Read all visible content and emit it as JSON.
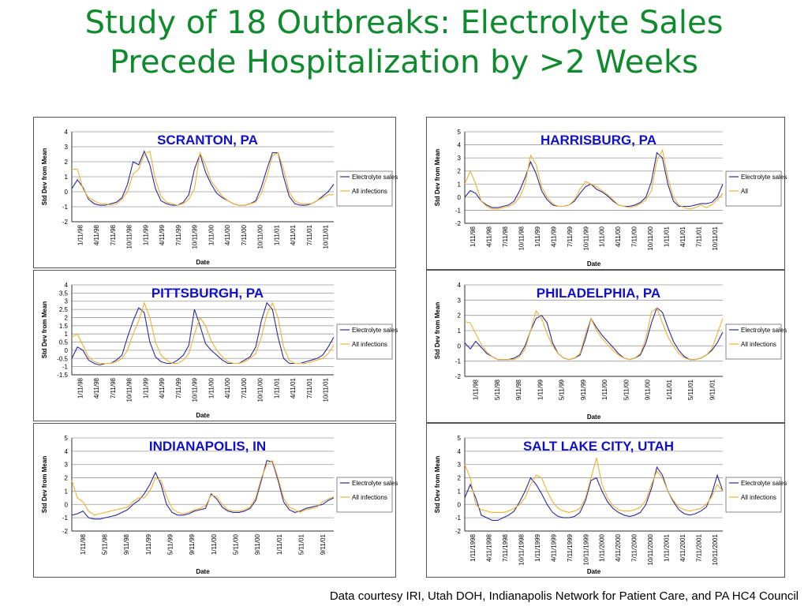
{
  "title": {
    "line1": "Study of 18 Outbreaks: Electrolyte Sales",
    "line2": "Precede Hospitalization by >2 Weeks"
  },
  "footer": "Data courtesy IRI, Utah DOH, Indianapolis Network for Patient Care, and PA HC4 Council",
  "colors": {
    "title": "#0f8a2f",
    "chart_title": "#1010c8",
    "electrolyte": "#2a2aa0",
    "infections": "#f0b030"
  },
  "chart_data": [
    {
      "type": "line",
      "title": "SCRANTON, PA",
      "ylabel": "Std Dev from Mean",
      "xlabel": "Date",
      "ylim": [
        -2,
        4
      ],
      "yticks": [
        "-2",
        "-1",
        "0",
        "1",
        "2",
        "3",
        "4"
      ],
      "xticks": [
        "1/11/98",
        "4/11/98",
        "7/11/98",
        "10/11/98",
        "1/11/99",
        "4/11/99",
        "7/11/99",
        "10/11/99",
        "1/11/00",
        "4/11/00",
        "7/11/00",
        "10/11/00",
        "1/11/01",
        "4/11/01",
        "7/11/01",
        "10/11/01"
      ],
      "legend": "right",
      "grid": true,
      "x": [
        0,
        1,
        2,
        3,
        4,
        5,
        6,
        7,
        8,
        9,
        10,
        11,
        12,
        13,
        14,
        15,
        16,
        17,
        18,
        19,
        20,
        21,
        22,
        23,
        24,
        25,
        26,
        27,
        28,
        29,
        30,
        31,
        32,
        33,
        34,
        35,
        36,
        37,
        38,
        39,
        40,
        41,
        42,
        43,
        44,
        45,
        46,
        47
      ],
      "series": [
        {
          "name": "Electrolyte sales",
          "values": [
            0.2,
            0.8,
            0.3,
            -0.5,
            -0.8,
            -0.9,
            -0.9,
            -0.8,
            -0.7,
            -0.4,
            0.5,
            2.0,
            1.8,
            2.7,
            1.8,
            0.2,
            -0.6,
            -0.8,
            -0.9,
            -0.9,
            -0.7,
            -0.2,
            1.5,
            2.5,
            1.3,
            0.5,
            -0.1,
            -0.4,
            -0.6,
            -0.8,
            -0.9,
            -0.9,
            -0.8,
            -0.6,
            0.3,
            1.5,
            2.6,
            2.6,
            1.0,
            -0.3,
            -0.8,
            -0.9,
            -0.9,
            -0.8,
            -0.6,
            -0.3,
            0.0,
            0.5
          ]
        },
        {
          "name": "All infections",
          "values": [
            1.5,
            1.5,
            0.2,
            -0.4,
            -0.6,
            -0.8,
            -0.8,
            -0.9,
            -0.8,
            -0.5,
            0.0,
            1.2,
            1.5,
            2.5,
            2.7,
            0.8,
            -0.3,
            -0.7,
            -0.8,
            -0.9,
            -0.8,
            -0.5,
            0.2,
            2.6,
            1.8,
            0.7,
            0.2,
            -0.3,
            -0.6,
            -0.8,
            -0.9,
            -0.9,
            -0.8,
            -0.7,
            -0.1,
            1.0,
            2.4,
            2.6,
            1.5,
            0.0,
            -0.6,
            -0.8,
            -0.8,
            -0.8,
            -0.6,
            -0.4,
            -0.2,
            -0.2
          ]
        }
      ]
    },
    {
      "type": "line",
      "title": "HARRISBURG, PA",
      "ylabel": "Std Dev from Mean",
      "xlabel": "Date",
      "ylim": [
        -2,
        5
      ],
      "yticks": [
        "-2",
        "-1",
        "0",
        "1",
        "2",
        "3",
        "4",
        "5"
      ],
      "xticks": [
        "1/11/98",
        "4/11/98",
        "7/11/98",
        "10/11/98",
        "1/11/99",
        "4/11/99",
        "7/11/99",
        "10/11/99",
        "1/11/00",
        "4/11/00",
        "7/11/00",
        "10/11/00",
        "1/11/01",
        "4/11/01",
        "7/11/01",
        "10/11/01"
      ],
      "legend": "right",
      "grid": true,
      "x": [
        0,
        1,
        2,
        3,
        4,
        5,
        6,
        7,
        8,
        9,
        10,
        11,
        12,
        13,
        14,
        15,
        16,
        17,
        18,
        19,
        20,
        21,
        22,
        23,
        24,
        25,
        26,
        27,
        28,
        29,
        30,
        31,
        32,
        33,
        34,
        35,
        36,
        37,
        38,
        39,
        40,
        41,
        42,
        43,
        44,
        45,
        46,
        47
      ],
      "series": [
        {
          "name": "Electrolyte sales",
          "values": [
            0.0,
            0.5,
            0.3,
            -0.3,
            -0.6,
            -0.8,
            -0.8,
            -0.7,
            -0.6,
            -0.3,
            0.5,
            1.5,
            2.7,
            1.8,
            0.5,
            -0.2,
            -0.6,
            -0.7,
            -0.7,
            -0.6,
            -0.3,
            0.3,
            0.8,
            1.0,
            0.6,
            0.4,
            0.1,
            -0.3,
            -0.6,
            -0.7,
            -0.7,
            -0.6,
            -0.4,
            0.0,
            1.2,
            3.4,
            3.0,
            1.0,
            -0.3,
            -0.7,
            -0.7,
            -0.7,
            -0.6,
            -0.5,
            -0.5,
            -0.4,
            0.0,
            1.0
          ]
        },
        {
          "name": "All",
          "values": [
            1.0,
            2.0,
            1.0,
            -0.3,
            -0.7,
            -0.9,
            -0.9,
            -0.8,
            -0.7,
            -0.5,
            0.0,
            1.0,
            3.2,
            2.5,
            0.8,
            0.0,
            -0.5,
            -0.7,
            -0.7,
            -0.6,
            -0.2,
            0.6,
            1.2,
            1.0,
            0.8,
            0.5,
            0.2,
            -0.2,
            -0.6,
            -0.7,
            -0.8,
            -0.7,
            -0.5,
            -0.2,
            0.5,
            2.8,
            3.6,
            1.5,
            0.0,
            -0.6,
            -0.8,
            -0.9,
            -0.8,
            -0.6,
            -0.8,
            -0.6,
            -0.2,
            0.3
          ]
        }
      ]
    },
    {
      "type": "line",
      "title": "PITTSBURGH, PA",
      "ylabel": "Std Dev from Mean",
      "xlabel": "Date",
      "ylim": [
        -1.5,
        4
      ],
      "yticks": [
        "-1.5",
        "-1",
        "-0.5",
        "0",
        "0.5",
        "1",
        "1.5",
        "2",
        "2.5",
        "3",
        "3.5",
        "4"
      ],
      "xticks": [
        "1/11/98",
        "4/11/98",
        "7/11/98",
        "10/11/98",
        "1/11/99",
        "4/11/99",
        "7/11/99",
        "10/11/99",
        "1/11/00",
        "4/11/00",
        "7/11/00",
        "10/11/00",
        "1/11/01",
        "4/11/01",
        "7/11/01",
        "10/11/01"
      ],
      "legend": "right",
      "grid": true,
      "x": [
        0,
        1,
        2,
        3,
        4,
        5,
        6,
        7,
        8,
        9,
        10,
        11,
        12,
        13,
        14,
        15,
        16,
        17,
        18,
        19,
        20,
        21,
        22,
        23,
        24,
        25,
        26,
        27,
        28,
        29,
        30,
        31,
        32,
        33,
        34,
        35,
        36,
        37,
        38,
        39,
        40,
        41,
        42,
        43,
        44,
        45,
        46,
        47
      ],
      "series": [
        {
          "name": "Electrolyte sales",
          "values": [
            -0.5,
            0.2,
            0.0,
            -0.6,
            -0.8,
            -0.9,
            -0.8,
            -0.8,
            -0.6,
            -0.3,
            0.8,
            1.8,
            2.6,
            2.3,
            0.5,
            -0.4,
            -0.7,
            -0.8,
            -0.8,
            -0.6,
            -0.3,
            0.3,
            2.5,
            1.5,
            0.4,
            0.0,
            -0.3,
            -0.6,
            -0.8,
            -0.8,
            -0.8,
            -0.6,
            -0.4,
            0.2,
            1.8,
            2.9,
            2.5,
            0.8,
            -0.5,
            -0.8,
            -0.8,
            -0.8,
            -0.7,
            -0.6,
            -0.5,
            -0.3,
            0.2,
            0.8
          ]
        },
        {
          "name": "All infections",
          "values": [
            0.8,
            1.0,
            0.3,
            -0.4,
            -0.7,
            -0.8,
            -0.8,
            -0.8,
            -0.7,
            -0.5,
            0.0,
            1.0,
            1.8,
            2.9,
            2.0,
            0.5,
            -0.3,
            -0.6,
            -0.8,
            -0.8,
            -0.6,
            -0.2,
            1.0,
            2.0,
            1.5,
            0.6,
            0.0,
            -0.4,
            -0.7,
            -0.8,
            -0.8,
            -0.7,
            -0.5,
            -0.2,
            0.8,
            2.2,
            2.9,
            2.0,
            0.2,
            -0.6,
            -0.8,
            -0.8,
            -0.8,
            -0.7,
            -0.6,
            -0.5,
            -0.2,
            0.3
          ]
        }
      ]
    },
    {
      "type": "line",
      "title": "PHILADELPHIA, PA",
      "ylabel": "Std Dev from Mean",
      "xlabel": "Date",
      "ylim": [
        -2,
        4
      ],
      "yticks": [
        "-2",
        "-1",
        "0",
        "1",
        "2",
        "3",
        "4"
      ],
      "xticks": [
        "1/11/98",
        "5/11/98",
        "9/11/98",
        "1/11/99",
        "5/11/99",
        "9/11/99",
        "1/11/00",
        "5/11/00",
        "9/11/00",
        "1/11/01",
        "5/11/01",
        "9/11/01"
      ],
      "legend": "right",
      "grid": true,
      "x": [
        0,
        1,
        2,
        3,
        4,
        5,
        6,
        7,
        8,
        9,
        10,
        11,
        12,
        13,
        14,
        15,
        16,
        17,
        18,
        19,
        20,
        21,
        22,
        23,
        24,
        25,
        26,
        27,
        28,
        29,
        30,
        31,
        32,
        33,
        34,
        35,
        36,
        37,
        38,
        39,
        40,
        41,
        42,
        43,
        44,
        45,
        46,
        47
      ],
      "series": [
        {
          "name": "Electrolyte sales",
          "values": [
            0.2,
            -0.2,
            0.3,
            -0.1,
            -0.5,
            -0.7,
            -0.9,
            -0.9,
            -0.9,
            -0.8,
            -0.6,
            0.0,
            1.0,
            1.8,
            2.0,
            1.5,
            0.2,
            -0.5,
            -0.8,
            -0.9,
            -0.8,
            -0.6,
            0.5,
            1.8,
            1.2,
            0.7,
            0.3,
            -0.1,
            -0.5,
            -0.8,
            -0.9,
            -0.8,
            -0.6,
            0.2,
            1.5,
            2.5,
            2.2,
            1.2,
            0.3,
            -0.3,
            -0.7,
            -0.9,
            -0.9,
            -0.8,
            -0.6,
            -0.3,
            0.2,
            0.9
          ]
        },
        {
          "name": "All infections",
          "values": [
            1.6,
            1.5,
            0.8,
            0.1,
            -0.4,
            -0.7,
            -0.9,
            -0.9,
            -0.9,
            -0.9,
            -0.7,
            -0.2,
            1.0,
            2.3,
            1.8,
            0.8,
            0.0,
            -0.5,
            -0.8,
            -0.9,
            -0.8,
            -0.5,
            0.8,
            1.8,
            1.0,
            0.5,
            0.1,
            -0.3,
            -0.6,
            -0.8,
            -0.9,
            -0.8,
            -0.5,
            0.5,
            2.2,
            2.5,
            1.5,
            0.6,
            0.0,
            -0.5,
            -0.8,
            -0.9,
            -0.9,
            -0.8,
            -0.6,
            -0.2,
            0.8,
            1.8
          ]
        }
      ]
    },
    {
      "type": "line",
      "title": "INDIANAPOLIS, IN",
      "ylabel": "Std Dev from Mean",
      "xlabel": "Date",
      "ylim": [
        -2,
        5
      ],
      "yticks": [
        "-2",
        "-1",
        "0",
        "1",
        "2",
        "3",
        "4",
        "5"
      ],
      "xticks": [
        "1/11/98",
        "5/11/98",
        "9/11/98",
        "1/11/99",
        "5/11/99",
        "9/11/99",
        "1/11/00",
        "5/11/00",
        "9/11/00",
        "1/11/01",
        "5/11/01",
        "9/11/01"
      ],
      "legend": "right",
      "grid": true,
      "x": [
        0,
        1,
        2,
        3,
        4,
        5,
        6,
        7,
        8,
        9,
        10,
        11,
        12,
        13,
        14,
        15,
        16,
        17,
        18,
        19,
        20,
        21,
        22,
        23,
        24,
        25,
        26,
        27,
        28,
        29,
        30,
        31,
        32,
        33,
        34,
        35,
        36,
        37,
        38,
        39,
        40,
        41,
        42,
        43,
        44,
        45,
        46,
        47
      ],
      "series": [
        {
          "name": "Electrolyte sales",
          "values": [
            -0.8,
            -0.7,
            -0.5,
            -1.0,
            -1.1,
            -1.1,
            -1.0,
            -0.9,
            -0.8,
            -0.6,
            -0.4,
            0.0,
            0.3,
            0.8,
            1.5,
            2.4,
            1.5,
            0.0,
            -0.6,
            -0.8,
            -0.8,
            -0.7,
            -0.5,
            -0.4,
            -0.3,
            0.8,
            0.4,
            -0.2,
            -0.5,
            -0.6,
            -0.6,
            -0.5,
            -0.3,
            0.3,
            1.8,
            3.3,
            3.2,
            1.8,
            0.2,
            -0.4,
            -0.6,
            -0.5,
            -0.3,
            -0.2,
            -0.1,
            0.0,
            0.3,
            0.5
          ]
        },
        {
          "name": "All infections",
          "values": [
            1.8,
            0.5,
            0.2,
            -0.5,
            -0.8,
            -0.7,
            -0.6,
            -0.5,
            -0.4,
            -0.3,
            -0.2,
            0.2,
            0.5,
            0.5,
            1.0,
            2.0,
            1.8,
            0.6,
            -0.3,
            -0.6,
            -0.7,
            -0.6,
            -0.4,
            -0.3,
            -0.1,
            0.7,
            0.6,
            0.0,
            -0.4,
            -0.5,
            -0.5,
            -0.4,
            -0.2,
            0.5,
            2.0,
            3.0,
            3.3,
            2.0,
            0.5,
            -0.2,
            -0.4,
            -0.6,
            -0.4,
            -0.3,
            -0.2,
            0.2,
            0.4,
            0.6
          ]
        }
      ]
    },
    {
      "type": "line",
      "title": "SALT LAKE CITY, UTAH",
      "ylabel": "Std Dev from Mean",
      "xlabel": "Date",
      "ylim": [
        -2,
        5
      ],
      "yticks": [
        "-2",
        "-1",
        "0",
        "1",
        "2",
        "3",
        "4",
        "5"
      ],
      "xticks": [
        "1/11/1998",
        "4/11/1998",
        "7/11/1998",
        "10/11/1998",
        "1/11/1999",
        "4/11/1999",
        "7/11/1999",
        "10/11/1999",
        "1/11/2000",
        "4/11/2000",
        "7/11/2000",
        "10/11/2000",
        "1/11/2001",
        "4/11/2001",
        "7/11/2001",
        "10/11/2001"
      ],
      "legend": "right",
      "grid": true,
      "x": [
        0,
        1,
        2,
        3,
        4,
        5,
        6,
        7,
        8,
        9,
        10,
        11,
        12,
        13,
        14,
        15,
        16,
        17,
        18,
        19,
        20,
        21,
        22,
        23,
        24,
        25,
        26,
        27,
        28,
        29,
        30,
        31,
        32,
        33,
        34,
        35,
        36,
        37,
        38,
        39,
        40,
        41,
        42,
        43,
        44,
        45,
        46,
        47
      ],
      "series": [
        {
          "name": "Electrolyte sales",
          "values": [
            0.5,
            1.5,
            0.5,
            -0.8,
            -1.0,
            -1.2,
            -1.2,
            -1.0,
            -0.8,
            -0.5,
            0.2,
            1.0,
            2.0,
            1.5,
            0.8,
            0.0,
            -0.6,
            -0.9,
            -1.0,
            -1.0,
            -0.9,
            -0.6,
            0.3,
            1.8,
            2.0,
            1.0,
            0.2,
            -0.3,
            -0.6,
            -0.8,
            -0.9,
            -0.8,
            -0.6,
            0.0,
            1.2,
            2.8,
            2.2,
            1.0,
            0.2,
            -0.4,
            -0.7,
            -0.8,
            -0.7,
            -0.5,
            -0.2,
            0.8,
            2.2,
            1.0
          ]
        },
        {
          "name": "All infections",
          "values": [
            3.0,
            2.0,
            0.0,
            -0.4,
            -0.5,
            -0.6,
            -0.6,
            -0.6,
            -0.5,
            -0.3,
            0.0,
            0.5,
            1.5,
            2.2,
            2.0,
            1.0,
            0.2,
            -0.3,
            -0.5,
            -0.6,
            -0.5,
            -0.3,
            0.5,
            2.0,
            3.5,
            1.5,
            0.5,
            -0.1,
            -0.4,
            -0.5,
            -0.5,
            -0.4,
            -0.2,
            0.3,
            1.5,
            2.5,
            2.0,
            1.0,
            0.3,
            -0.2,
            -0.4,
            -0.5,
            -0.4,
            -0.3,
            0.0,
            0.6,
            1.5,
            1.0
          ]
        }
      ]
    }
  ]
}
